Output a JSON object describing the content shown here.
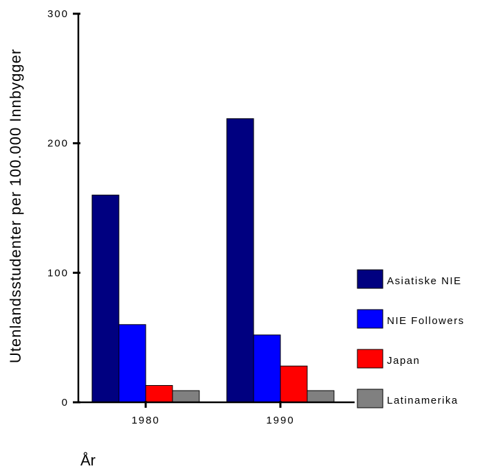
{
  "chart_data": {
    "type": "bar",
    "title": "",
    "xlabel": "År",
    "ylabel": "Utenlandsstudenter per 100.000 Innbygger",
    "categories": [
      "1980",
      "1990"
    ],
    "series": [
      {
        "name": "Asiatiske NIE",
        "values": [
          160,
          219
        ],
        "color": "#000080"
      },
      {
        "name": "NIE Followers",
        "values": [
          60,
          52
        ],
        "color": "#0000ff"
      },
      {
        "name": "Japan",
        "values": [
          13,
          28
        ],
        "color": "#ff0000"
      },
      {
        "name": "Latinamerika",
        "values": [
          9,
          9
        ],
        "color": "#808080"
      }
    ],
    "y_ticks": [
      0,
      100,
      200,
      300
    ],
    "ylim": [
      0,
      300
    ],
    "grid": false,
    "legend_position": "right"
  }
}
